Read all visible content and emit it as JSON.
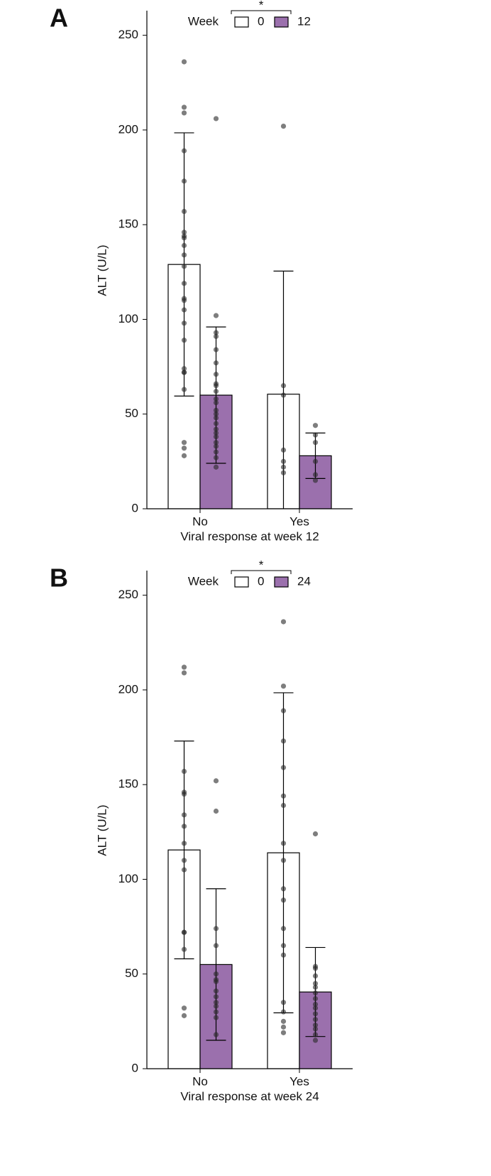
{
  "chart_data": [
    {
      "type": "bar",
      "panel_label": "A",
      "x_label": "Viral response at week 12",
      "y_label": "ALT (U/L)",
      "legend_title": "Week",
      "annotation": "*",
      "categories": [
        "No",
        "Yes"
      ],
      "ylim": [
        0,
        263
      ],
      "yticks": [
        0,
        50,
        100,
        150,
        200,
        250
      ],
      "series": [
        {
          "name": "0",
          "color": "#ffffff",
          "values": [
            129,
            60.5
          ],
          "errors": [
            69.5,
            65
          ],
          "points": [
            [
              236,
              212,
              209,
              189,
              173,
              157,
              146,
              144,
              143,
              139,
              134,
              128,
              119,
              111,
              110,
              105,
              98,
              89,
              74,
              72,
              72,
              63,
              35,
              32,
              28
            ],
            [
              202,
              65,
              60,
              31,
              25,
              22,
              19
            ]
          ]
        },
        {
          "name": "12",
          "color": "#9b70ad",
          "values": [
            60,
            28
          ],
          "errors": [
            36,
            12
          ],
          "points": [
            [
              206,
              102,
              93,
              91,
              84,
              77,
              71,
              66,
              65,
              62,
              58,
              56,
              52,
              50,
              48,
              45,
              42,
              40,
              38,
              35,
              33,
              30,
              27,
              22
            ],
            [
              44,
              39,
              35,
              25,
              18,
              15
            ]
          ]
        }
      ]
    },
    {
      "type": "bar",
      "panel_label": "B",
      "x_label": "Viral response at week 24",
      "y_label": "ALT (U/L)",
      "legend_title": "Week",
      "annotation": "*",
      "categories": [
        "No",
        "Yes"
      ],
      "ylim": [
        0,
        263
      ],
      "yticks": [
        0,
        50,
        100,
        150,
        200,
        250
      ],
      "series": [
        {
          "name": "0",
          "color": "#ffffff",
          "values": [
            115.5,
            114
          ],
          "errors": [
            57.5,
            84.5
          ],
          "points": [
            [
              212,
              209,
              157,
              146,
              145,
              134,
              128,
              119,
              110,
              105,
              72,
              72,
              63,
              32,
              28
            ],
            [
              236,
              202,
              189,
              173,
              159,
              144,
              139,
              119,
              110,
              95,
              89,
              74,
              65,
              60,
              35,
              30,
              25,
              22,
              19
            ]
          ]
        },
        {
          "name": "24",
          "color": "#9b70ad",
          "values": [
            55,
            40.5
          ],
          "errors": [
            40,
            23.5
          ],
          "points": [
            [
              152,
              136,
              74,
              65,
              50,
              47,
              46,
              41,
              38,
              35,
              33,
              30,
              27,
              18
            ],
            [
              124,
              54,
              53,
              49,
              45,
              43,
              40,
              37,
              34,
              32,
              29,
              26,
              23,
              21,
              18,
              15
            ]
          ]
        }
      ]
    }
  ]
}
